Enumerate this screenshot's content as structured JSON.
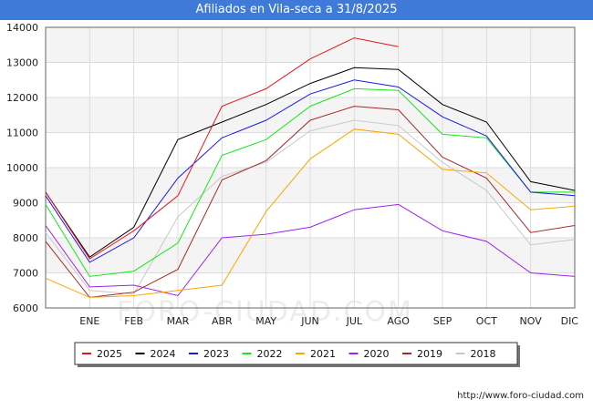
{
  "title": "Afiliados en Vila-seca a 31/8/2025",
  "footer": "http://www.foro-ciudad.com",
  "watermark": "FORO-CIUDAD.COM",
  "chart_data": {
    "type": "line",
    "categories": [
      "",
      "ENE",
      "FEB",
      "MAR",
      "ABR",
      "MAY",
      "JUN",
      "JUL",
      "AGO",
      "SEP",
      "OCT",
      "NOV",
      "DIC"
    ],
    "ylim": [
      6000,
      14000
    ],
    "yticks": [
      6000,
      7000,
      8000,
      9000,
      10000,
      11000,
      12000,
      13000,
      14000
    ],
    "grid": true,
    "legend_position": "bottom",
    "series": [
      {
        "name": "2025",
        "color": "#e8141a",
        "values": [
          9300,
          7400,
          8200,
          9200,
          11750,
          12250,
          13100,
          13700,
          13450,
          null,
          null,
          null,
          null
        ]
      },
      {
        "name": "2024",
        "color": "#000000",
        "values": [
          9300,
          7450,
          8300,
          10800,
          11300,
          11800,
          12400,
          12850,
          12800,
          11800,
          11300,
          9600,
          9350
        ]
      },
      {
        "name": "2023",
        "color": "#1a1ae8",
        "values": [
          9200,
          7300,
          8000,
          9700,
          10850,
          11350,
          12100,
          12500,
          12300,
          11450,
          10900,
          9300,
          9200
        ]
      },
      {
        "name": "2022",
        "color": "#17e817",
        "values": [
          8950,
          6900,
          7050,
          7850,
          10350,
          10800,
          11750,
          12250,
          12200,
          10950,
          10850,
          9300,
          9300
        ]
      },
      {
        "name": "2021",
        "color": "#ffa500",
        "values": [
          6850,
          6300,
          6350,
          6500,
          6650,
          8750,
          10250,
          11100,
          10950,
          9950,
          9850,
          8800,
          8900
        ]
      },
      {
        "name": "2020",
        "color": "#a020f0",
        "values": [
          8350,
          6600,
          6650,
          6350,
          8000,
          8100,
          8300,
          8800,
          8950,
          8200,
          7900,
          7000,
          6900
        ]
      },
      {
        "name": "2019",
        "color": "#a52a2a",
        "values": [
          7900,
          6300,
          6450,
          7100,
          9650,
          10200,
          11350,
          11750,
          11650,
          10300,
          9700,
          8150,
          8350
        ]
      },
      {
        "name": "2018",
        "color": "#c8c8c8",
        "values": [
          8150,
          6500,
          6400,
          8600,
          9750,
          10150,
          11050,
          11350,
          11200,
          10150,
          9350,
          7800,
          7950
        ]
      }
    ]
  }
}
